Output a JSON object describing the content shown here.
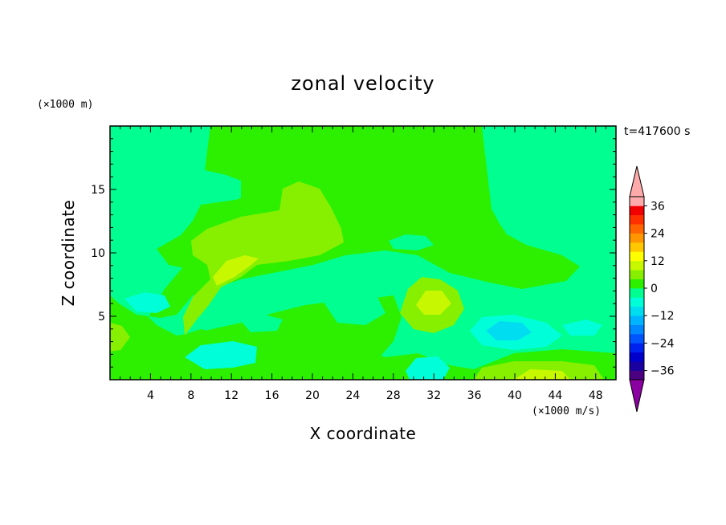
{
  "chart_data": {
    "type": "heatmap",
    "title": "zonal velocity",
    "xlabel": "X coordinate",
    "ylabel": "Z coordinate",
    "x_unit": "(×1000 m/s)",
    "y_unit": "(×1000 m)",
    "time_label": "t=417600 s",
    "xlim": [
      0,
      50
    ],
    "ylim": [
      0,
      20
    ],
    "x_ticks": [
      4,
      8,
      12,
      16,
      20,
      24,
      28,
      32,
      36,
      40,
      44,
      48
    ],
    "y_ticks": [
      5,
      10,
      15
    ],
    "colorbar": {
      "levels": [
        -40,
        -36,
        -32,
        -28,
        -24,
        -20,
        -16,
        -12,
        -8,
        -4,
        0,
        4,
        8,
        12,
        16,
        20,
        24,
        28,
        32,
        36,
        40
      ],
      "colors": [
        "#4b0082",
        "#1a00a0",
        "#0000cd",
        "#0022ee",
        "#0055ff",
        "#0088ff",
        "#00b4ff",
        "#00ddf0",
        "#00ffd8",
        "#00ff90",
        "#2cf000",
        "#86f000",
        "#c8f800",
        "#ffff00",
        "#ffc800",
        "#ff9600",
        "#ff6400",
        "#ff3000",
        "#f00000",
        "#ffaaaa"
      ],
      "under_color": "#8b00a0",
      "over_color": "#ffaaaa",
      "tick_values": [
        36,
        24,
        12,
        0,
        -12,
        -24,
        -36
      ],
      "tick_labels": [
        "36",
        "24",
        "12",
        "0",
        "−12",
        "−24",
        "−36"
      ]
    },
    "field_regions": [
      {
        "level": "background",
        "value": -3,
        "x": [
          0,
          50
        ],
        "z": [
          0,
          20
        ]
      },
      {
        "level": "green",
        "value": 2,
        "x": [
          10,
          37
        ],
        "z": [
          9,
          19.5
        ]
      },
      {
        "level": "yellow-green",
        "value": 6,
        "x": [
          8,
          23
        ],
        "z": [
          8,
          15.5
        ]
      },
      {
        "level": "yellow-green",
        "value": 6,
        "x": [
          28,
          34
        ],
        "z": [
          4,
          7.5
        ]
      },
      {
        "level": "yellow-green",
        "value": 6,
        "x": [
          36,
          45
        ],
        "z": [
          0,
          1.5
        ]
      },
      {
        "level": "cyan",
        "value": -10,
        "x": [
          36,
          43
        ],
        "z": [
          3,
          5
        ]
      },
      {
        "level": "cyan",
        "value": -10,
        "x": [
          8,
          14
        ],
        "z": [
          1,
          3
        ]
      }
    ]
  }
}
